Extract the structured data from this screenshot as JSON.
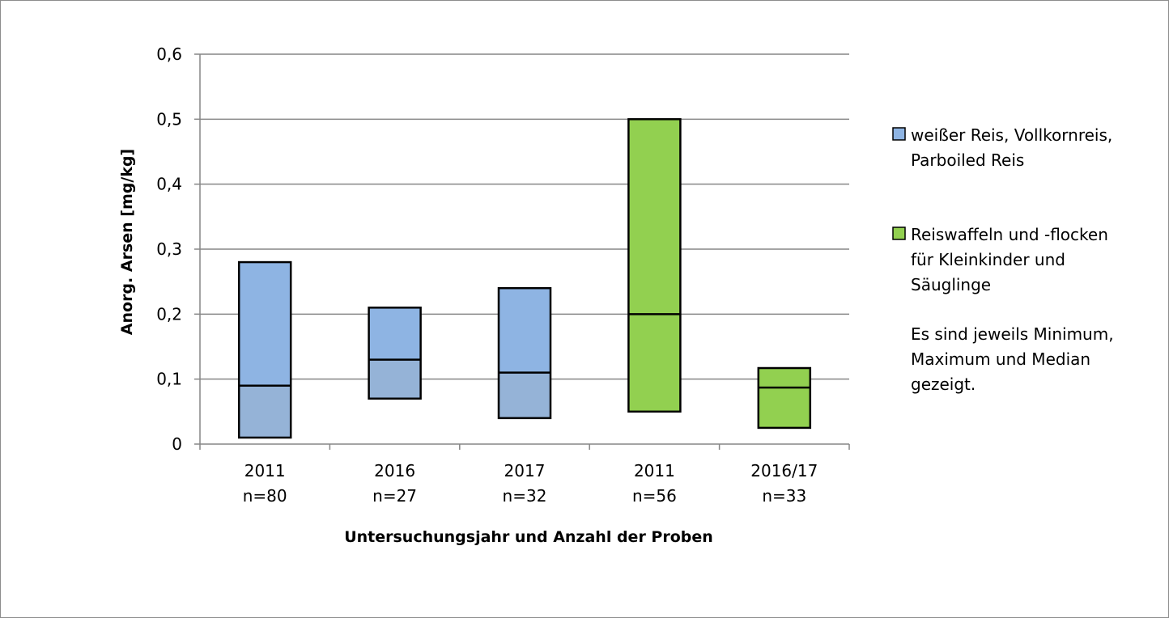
{
  "chart_data": {
    "type": "bar",
    "subtype": "floating-range-with-median",
    "title": "",
    "xlabel": "Untersuchungsjahr und Anzahl der Proben",
    "ylabel": "Anorg. Arsen [mg/kg]",
    "ylim": [
      0,
      0.6
    ],
    "yticks": [
      "0",
      "0,1",
      "0,2",
      "0,3",
      "0,4",
      "0,5",
      "0,6"
    ],
    "grid": true,
    "legend_position": "right",
    "categories": [
      {
        "year": "2011",
        "n": "n=80"
      },
      {
        "year": "2016",
        "n": "n=27"
      },
      {
        "year": "2017",
        "n": "n=32"
      },
      {
        "year": "2011",
        "n": "n=56"
      },
      {
        "year": "2016/17",
        "n": "n=33"
      }
    ],
    "series": [
      {
        "name_lines": [
          "weißer Reis, Vollkornreis,",
          "Parboiled Reis"
        ],
        "color": "#8eb4e3",
        "lower_color": "#95b3d7",
        "points": [
          {
            "category": 0,
            "min": 0.01,
            "median": 0.09,
            "max": 0.28
          },
          {
            "category": 1,
            "min": 0.07,
            "median": 0.13,
            "max": 0.21
          },
          {
            "category": 2,
            "min": 0.04,
            "median": 0.11,
            "max": 0.24
          }
        ]
      },
      {
        "name_lines": [
          "Reiswaffeln und -flocken",
          "für Kleinkinder und",
          "Säuglinge"
        ],
        "color": "#92d050",
        "lower_color": "#92d050",
        "points": [
          {
            "category": 3,
            "min": 0.05,
            "median": 0.2,
            "max": 0.5
          },
          {
            "category": 4,
            "min": 0.025,
            "median": 0.087,
            "max": 0.117
          }
        ]
      }
    ],
    "note_lines": [
      "Es sind jeweils Minimum,",
      "Maximum und Median",
      "gezeigt."
    ]
  }
}
